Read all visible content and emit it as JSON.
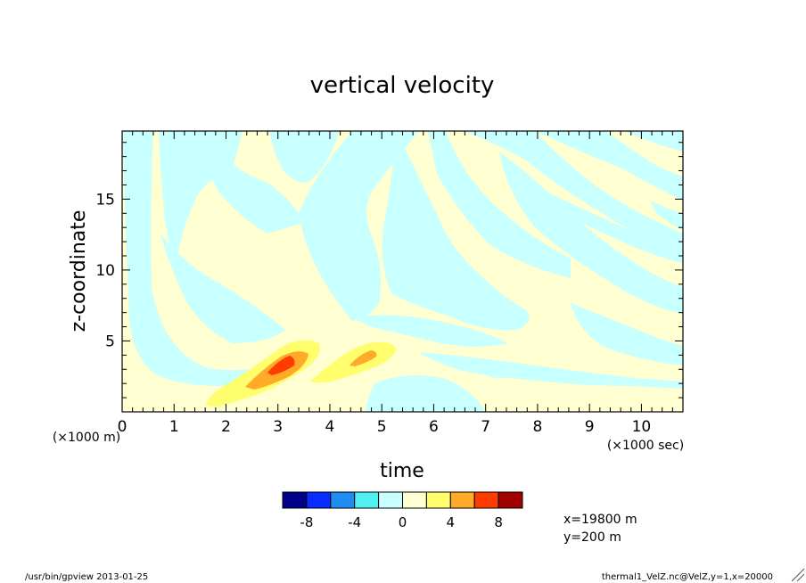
{
  "chart_data": {
    "type": "heatmap",
    "title": "vertical velocity",
    "xlabel": "time",
    "ylabel": "z-coordinate",
    "x_unit": "(×1000 sec)",
    "y_unit": "(×1000 m)",
    "xlim": [
      0,
      10.8
    ],
    "ylim": [
      0,
      19.8
    ],
    "x_ticks": [
      "0",
      "1",
      "2",
      "3",
      "4",
      "5",
      "6",
      "7",
      "8",
      "9",
      "10"
    ],
    "y_ticks": [
      "5",
      "10",
      "15"
    ],
    "colorbar": {
      "colors": [
        "#00008b",
        "#0a2cff",
        "#1e8cf0",
        "#50f0f0",
        "#c8ffff",
        "#ffffd2",
        "#ffff6e",
        "#ffaa28",
        "#ff3c00",
        "#a00000"
      ],
      "tick_labels": [
        "-8",
        "-4",
        "0",
        "4",
        "8"
      ],
      "tick_values": [
        -8,
        -4,
        0,
        4,
        8
      ],
      "range": [
        -10,
        10
      ]
    },
    "features": [
      {
        "kind": "updraft",
        "t": 3.05,
        "z": 3.2,
        "peak": 9
      },
      {
        "kind": "updraft",
        "t": 4.65,
        "z": 3.9,
        "peak": 5
      }
    ]
  },
  "side_info": [
    "x=19800 m",
    "y=200 m"
  ],
  "footer": {
    "left": "/usr/bin/gpview  2013-01-25",
    "right": "thermal1_VelZ.nc@VelZ,y=1,x=20000"
  }
}
